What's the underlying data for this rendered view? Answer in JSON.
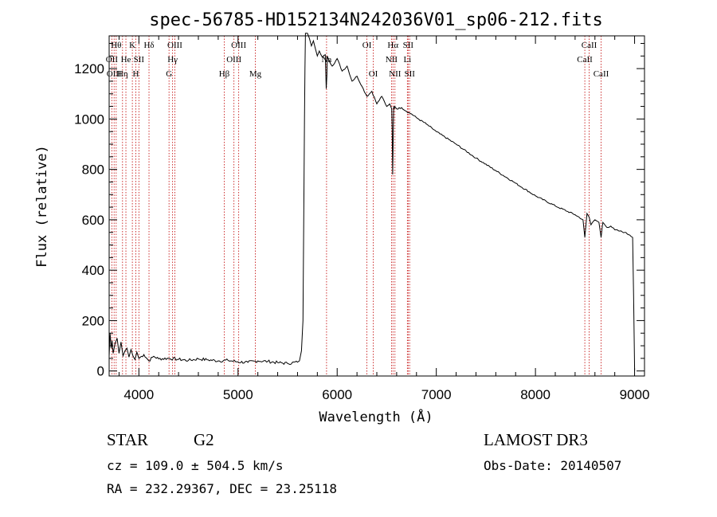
{
  "chart_data": {
    "type": "line",
    "title": "spec-56785-HD152134N242036V01_sp06-212.fits",
    "xlabel": "Wavelength (Å)",
    "ylabel": "Flux (relative)",
    "xlim": [
      3700,
      9100
    ],
    "ylim": [
      -20,
      1330
    ],
    "xticks": [
      4000,
      5000,
      6000,
      7000,
      8000,
      9000
    ],
    "yticks": [
      0,
      200,
      400,
      600,
      800,
      1000,
      1200
    ],
    "grid": false,
    "series": [
      {
        "x": [
          3700,
          3710,
          3720,
          3730,
          3740,
          3760,
          3780,
          3800,
          3820,
          3840,
          3860,
          3880,
          3900,
          3920,
          3940,
          3960,
          3980,
          4000,
          4050,
          4100,
          4150,
          4200,
          4300,
          4400,
          4500,
          4600,
          4700,
          4800,
          4900,
          5000,
          5100,
          5200,
          5300,
          5400,
          5500,
          5600,
          5620,
          5640,
          5655,
          5665,
          5670,
          5675,
          5680,
          5700,
          5720,
          5740,
          5760,
          5780,
          5800,
          5820,
          5850,
          5880,
          5890,
          5896,
          5900,
          5910,
          5950,
          6000,
          6050,
          6100,
          6150,
          6200,
          6250,
          6300,
          6350,
          6400,
          6450,
          6500,
          6530,
          6550,
          6555,
          6560,
          6563,
          6566,
          6570,
          6575,
          6580,
          6600,
          6650,
          6700,
          6750,
          6800,
          6900,
          7000,
          7200,
          7400,
          7600,
          7800,
          8000,
          8200,
          8400,
          8480,
          8498,
          8520,
          8542,
          8560,
          8600,
          8640,
          8662,
          8680,
          8720,
          8760,
          8800,
          8850,
          8900,
          8950,
          8980,
          8990,
          9000
        ],
        "y": [
          60,
          150,
          90,
          120,
          70,
          110,
          130,
          70,
          115,
          60,
          80,
          90,
          55,
          85,
          60,
          45,
          75,
          50,
          65,
          40,
          58,
          48,
          50,
          46,
          42,
          48,
          44,
          40,
          42,
          36,
          34,
          40,
          38,
          33,
          30,
          35,
          40,
          80,
          200,
          700,
          1000,
          1200,
          1340,
          1340,
          1320,
          1290,
          1310,
          1280,
          1250,
          1270,
          1245,
          1255,
          1120,
          1170,
          1250,
          1240,
          1210,
          1240,
          1190,
          1210,
          1150,
          1170,
          1130,
          1090,
          1110,
          1060,
          1090,
          1050,
          1060,
          1040,
          960,
          780,
          860,
          960,
          1050,
          1040,
          1050,
          1040,
          1045,
          1030,
          1020,
          1005,
          980,
          950,
          900,
          845,
          795,
          745,
          695,
          655,
          620,
          600,
          530,
          625,
          610,
          580,
          600,
          590,
          530,
          590,
          570,
          575,
          560,
          555,
          550,
          540,
          530,
          300,
          0
        ]
      }
    ],
    "line_labels": [
      {
        "wavelength": 3727,
        "label": "OII",
        "row": 1
      },
      {
        "wavelength": 3750,
        "label": "OIII",
        "row": 2
      },
      {
        "wavelength": 3771,
        "label": "Hθ",
        "row": 0
      },
      {
        "wavelength": 3835,
        "label": "Hη",
        "row": 2
      },
      {
        "wavelength": 3869,
        "label": "He",
        "row": 1
      },
      {
        "wavelength": 3934,
        "label": "K",
        "row": 0
      },
      {
        "wavelength": 3969,
        "label": "H",
        "row": 2
      },
      {
        "wavelength": 4000,
        "label": "SII",
        "row": 1
      },
      {
        "wavelength": 4102,
        "label": "Hδ",
        "row": 0
      },
      {
        "wavelength": 4304,
        "label": "G",
        "row": 2
      },
      {
        "wavelength": 4340,
        "label": "Hγ",
        "row": 1
      },
      {
        "wavelength": 4363,
        "label": "OIII",
        "row": 0
      },
      {
        "wavelength": 4861,
        "label": "Hβ",
        "row": 2
      },
      {
        "wavelength": 4959,
        "label": "OIII",
        "row": 1
      },
      {
        "wavelength": 5007,
        "label": "OIII",
        "row": 0
      },
      {
        "wavelength": 5175,
        "label": "Mg",
        "row": 2
      },
      {
        "wavelength": 5893,
        "label": "Na",
        "row": 1
      },
      {
        "wavelength": 6300,
        "label": "OI",
        "row": 0
      },
      {
        "wavelength": 6364,
        "label": "OI",
        "row": 2
      },
      {
        "wavelength": 6548,
        "label": "NII",
        "row": 1
      },
      {
        "wavelength": 6563,
        "label": "Hα",
        "row": 0
      },
      {
        "wavelength": 6583,
        "label": "NII",
        "row": 2
      },
      {
        "wavelength": 6708,
        "label": "Li",
        "row": 1
      },
      {
        "wavelength": 6716,
        "label": "SII",
        "row": 0
      },
      {
        "wavelength": 6731,
        "label": "SII",
        "row": 2
      },
      {
        "wavelength": 8498,
        "label": "CaII",
        "row": 1
      },
      {
        "wavelength": 8542,
        "label": "CaII",
        "row": 0
      },
      {
        "wavelength": 8662,
        "label": "CaII",
        "row": 2
      }
    ]
  },
  "info": {
    "object_class": "STAR",
    "subclass": "G2",
    "survey": "LAMOST DR3",
    "cz": "cz = 109.0 ± 504.5 km/s",
    "obs_date": "Obs-Date: 20140507",
    "coords": "RA = 232.29367, DEC =  23.25118"
  },
  "colors": {
    "spectrum": "#000000",
    "marker_lines": "#c00000"
  }
}
